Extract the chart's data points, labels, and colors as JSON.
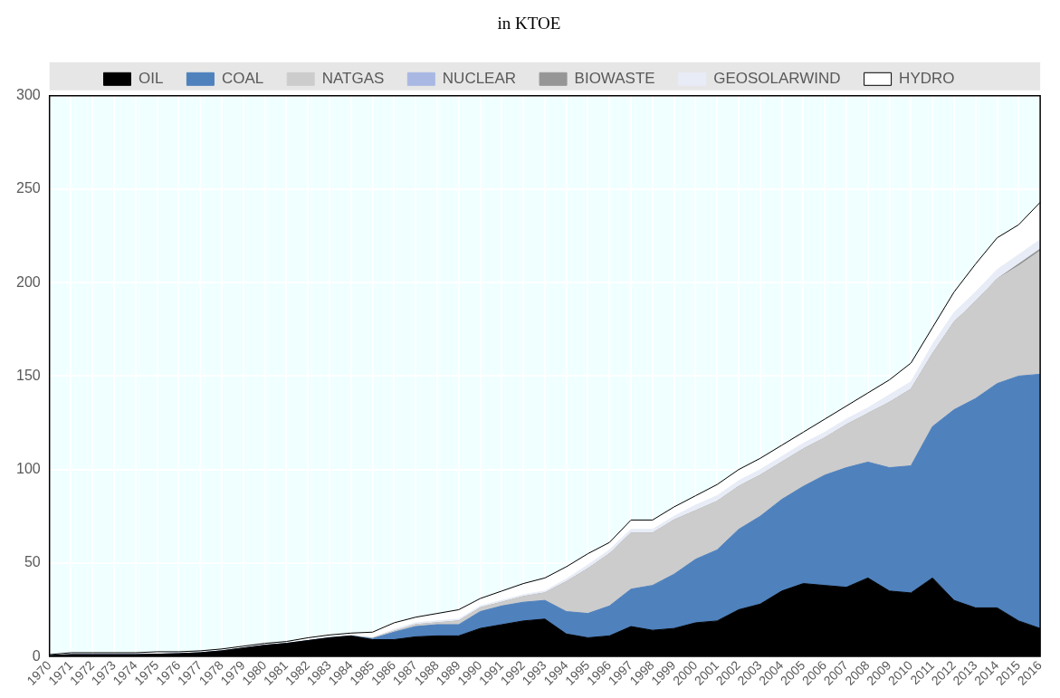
{
  "chart_data": {
    "type": "area",
    "title": "in KTOE",
    "stacked": true,
    "grid": true,
    "legend": "top",
    "marker": "none",
    "categories": [
      "1970",
      "1971",
      "1972",
      "1973",
      "1974",
      "1975",
      "1976",
      "1977",
      "1978",
      "1979",
      "1980",
      "1981",
      "1982",
      "1983",
      "1984",
      "1985",
      "1986",
      "1987",
      "1988",
      "1989",
      "1990",
      "1991",
      "1992",
      "1993",
      "1994",
      "1995",
      "1996",
      "1997",
      "1998",
      "1999",
      "2000",
      "2001",
      "2002",
      "2003",
      "2004",
      "2005",
      "2006",
      "2007",
      "2008",
      "2009",
      "2010",
      "2011",
      "2012",
      "2013",
      "2014",
      "2015",
      "2016"
    ],
    "ylim": [
      0,
      300
    ],
    "yticks": [
      0,
      50,
      100,
      150,
      200,
      250,
      300
    ],
    "series": [
      {
        "name": "OIL",
        "color": "#000000",
        "values": [
          0.5,
          1,
          1,
          1,
          1,
          1.2,
          1.5,
          2,
          3,
          4.5,
          6,
          7,
          8.5,
          10,
          11,
          9,
          9,
          10.5,
          11,
          11,
          15,
          17,
          19,
          20,
          12,
          10,
          11,
          16,
          14,
          15,
          18,
          19,
          25,
          28,
          35,
          39,
          38,
          37,
          42,
          35,
          34,
          42,
          30,
          26,
          26,
          19,
          15
        ]
      },
      {
        "name": "COAL",
        "color": "#4f81bd",
        "values": [
          0,
          0,
          0,
          0,
          0,
          0,
          0,
          0,
          0,
          0,
          0,
          0,
          0,
          0,
          0,
          0.5,
          4,
          5.5,
          6,
          6,
          9,
          10,
          10,
          10,
          12,
          13,
          16,
          20,
          24,
          29,
          34,
          38,
          43,
          47,
          49,
          52,
          59,
          64,
          62,
          66,
          68,
          81,
          102,
          112,
          120,
          131,
          136
        ]
      },
      {
        "name": "NATGAS",
        "color": "#cccccc",
        "values": [
          0,
          0,
          0,
          0,
          0,
          0,
          0,
          0,
          0,
          0,
          0,
          0,
          0,
          0,
          0,
          0.3,
          0.5,
          1,
          1,
          2,
          2,
          2,
          3,
          4,
          16,
          24,
          28,
          30,
          28,
          29,
          26,
          26,
          23,
          22,
          20,
          20,
          20,
          23,
          26,
          35,
          41,
          39,
          47,
          52,
          56,
          59,
          66
        ]
      },
      {
        "name": "NUCLEAR",
        "color": "#a9b8e3",
        "values": [
          null,
          null,
          null,
          null,
          null,
          null,
          null,
          null,
          null,
          null,
          null,
          null,
          null,
          null,
          null,
          null,
          null,
          null,
          null,
          null,
          null,
          null,
          null,
          null,
          null,
          null,
          null,
          null,
          null,
          null,
          null,
          null,
          null,
          null,
          null,
          null,
          null,
          null,
          null,
          null,
          null,
          null,
          null,
          null,
          null,
          null,
          null
        ]
      },
      {
        "name": "BIOWASTE",
        "color": "#969696",
        "values": [
          0,
          0,
          0,
          0,
          0,
          0,
          0,
          0,
          0,
          0,
          0,
          0,
          0,
          0,
          0,
          0,
          0,
          0,
          0,
          0,
          0,
          0,
          0,
          0,
          0,
          0,
          0,
          0,
          0,
          0,
          0,
          0,
          0,
          0,
          0,
          0,
          0,
          0,
          0,
          0,
          0,
          0,
          0,
          0,
          0,
          1,
          1
        ]
      },
      {
        "name": "GEOSOLARWIND",
        "color": "#e8ecf6",
        "values": [
          0,
          0,
          0,
          0,
          0,
          0,
          0,
          0,
          0,
          0,
          0,
          0,
          0,
          0,
          0,
          0.2,
          1,
          1,
          1,
          1,
          1,
          1,
          1,
          1,
          1.5,
          2,
          2,
          2,
          2,
          2,
          3,
          3,
          3,
          3,
          3,
          3,
          3,
          3,
          3,
          4,
          4,
          5,
          5,
          5,
          5,
          5,
          5
        ]
      },
      {
        "name": "HYDRO",
        "color": "#ffffff",
        "values": [
          0.5,
          1,
          1,
          1,
          1,
          1.3,
          1,
          1,
          1,
          1,
          1,
          1,
          1.5,
          1.5,
          1.5,
          3,
          3.5,
          3,
          4,
          5,
          4,
          5,
          6,
          7,
          6.5,
          6,
          4,
          5,
          5,
          5,
          5,
          6,
          6,
          6,
          6,
          6,
          7,
          7,
          8,
          8,
          10,
          9,
          11,
          15,
          17,
          16,
          20
        ]
      }
    ]
  }
}
